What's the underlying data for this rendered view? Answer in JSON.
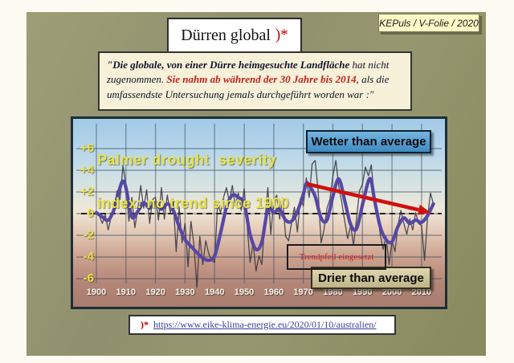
{
  "slide": {
    "badge": "KEPuls / V-Folie / 2020",
    "title": "Dürren global",
    "title_marker": ")*"
  },
  "quote": {
    "segments": [
      {
        "text": "\"Die globale, von einer Dürre heimgesuchte Landfläche",
        "style": "bold"
      },
      {
        "text": " hat nicht zugenommen. ",
        "style": "normal"
      },
      {
        "text": "Sie nahm ab während der 30 Jahre bis 2014",
        "style": "red-bold"
      },
      {
        "text": ", als die umfassendste Untersuchung jemals durchgeführt worden war :\"",
        "style": "normal"
      }
    ]
  },
  "chart_data": {
    "type": "line",
    "title_lines": [
      "Palmer drought  severity",
      "index: no trend since 1900"
    ],
    "xlabel": "",
    "ylabel": "Palmer drought severity index",
    "xlim": [
      1898,
      2016
    ],
    "ylim": [
      -7.3,
      8.4
    ],
    "grid": true,
    "x_ticks": [
      1900,
      1910,
      1920,
      1930,
      1940,
      1950,
      1960,
      1970,
      1980,
      1990,
      2000,
      2010
    ],
    "y_ticks": [
      {
        "label": "+6",
        "value": 6
      },
      {
        "label": "+4",
        "value": 4
      },
      {
        "label": "+2",
        "value": 2
      },
      {
        "label": "0",
        "value": 0
      },
      {
        "label": "-2",
        "value": -2
      },
      {
        "label": "-4",
        "value": -4
      },
      {
        "label": "-6",
        "value": -6
      }
    ],
    "series": [
      {
        "name": "annual-index",
        "x_start": 1900,
        "x_step": 1,
        "values": [
          0.2,
          -0.2,
          -0.9,
          -0.1,
          -1.5,
          -0.3,
          0.6,
          2.1,
          1.3,
          4.4,
          2.7,
          -0.7,
          1.5,
          -1.3,
          0.4,
          2.6,
          0.5,
          2.2,
          -0.9,
          1.3,
          1.5,
          -0.6,
          2.4,
          -0.5,
          1.7,
          0.1,
          1.2,
          -3.5,
          0.6,
          -2.7,
          -0.9,
          -4.9,
          -0.7,
          -2.9,
          -6.8,
          -2.1,
          -4.7,
          -2.5,
          -3.7,
          -4.3,
          -4.5,
          0.9,
          0.1,
          1.5,
          2.4,
          1.1,
          2.6,
          0.7,
          1.9,
          0.3,
          2.3,
          -1.1,
          -4.5,
          -2.7,
          -5.3,
          -3.9,
          -4.7,
          -0.7,
          2.4,
          -1.9,
          1.2,
          1.7,
          -0.5,
          1.4,
          -2.1,
          -2.5,
          -0.9,
          0.6,
          -1.7,
          1.4,
          0.7,
          3.3,
          1.5,
          4.6,
          4.9,
          2.1,
          -2.7,
          -1.5,
          0.5,
          1.3,
          3.5,
          4.9,
          2.5,
          1.1,
          -0.7,
          -2.3,
          -1.1,
          -2.9,
          -0.5,
          2.1,
          2.7,
          4.3,
          3.5,
          4.5,
          1.5,
          0.3,
          -1.9,
          -3.3,
          -2.1,
          -4.7,
          -2.5,
          -3.5,
          -1.1,
          0.3,
          -0.9,
          -1.9,
          -0.5,
          -1.5,
          0.1,
          -0.9,
          -1.1,
          -4.3,
          -0.4,
          1.9,
          0.9
        ]
      },
      {
        "name": "smoothed-index",
        "x": [
          1900,
          1902,
          1904,
          1906,
          1908,
          1909,
          1910,
          1912,
          1914,
          1916,
          1918,
          1920,
          1922,
          1924,
          1926,
          1928,
          1930,
          1932,
          1934,
          1936,
          1938,
          1940,
          1942,
          1944,
          1946,
          1948,
          1950,
          1952,
          1954,
          1956,
          1958,
          1960,
          1962,
          1964,
          1966,
          1968,
          1970,
          1971,
          1972,
          1974,
          1976,
          1978,
          1980,
          1982,
          1984,
          1986,
          1988,
          1990,
          1992,
          1993,
          1994,
          1996,
          1998,
          2000,
          2002,
          2004,
          2006,
          2008,
          2010,
          2012,
          2014
        ],
        "values": [
          0.1,
          -0.3,
          -0.6,
          0.4,
          2.4,
          3.0,
          2.4,
          -0.3,
          0.2,
          1.0,
          0.5,
          1.0,
          0.4,
          0.9,
          0.3,
          -1.2,
          -2.4,
          -3.0,
          -3.6,
          -4.1,
          -4.3,
          -3.9,
          -1.8,
          0.6,
          1.7,
          1.5,
          0.9,
          -1.9,
          -3.3,
          -2.6,
          0.4,
          0.1,
          0.4,
          -0.6,
          -0.7,
          0.2,
          1.8,
          2.8,
          2.6,
          1.6,
          -0.4,
          -0.6,
          1.6,
          3.2,
          1.2,
          -1.0,
          -1.4,
          0.8,
          3.0,
          3.0,
          1.4,
          -1.2,
          -2.4,
          -2.6,
          -1.2,
          -0.4,
          -0.9,
          -0.6,
          -0.8,
          -0.2,
          0.9
        ]
      }
    ],
    "trend_arrow": {
      "from": {
        "year": 1971,
        "value": 2.75
      },
      "to": {
        "year": 2013,
        "value": 0.1
      },
      "color": "#d01010"
    },
    "labels": {
      "wetter": "Wetter than average",
      "drier": "Drier than average",
      "annotation": "Trendpfeil eingesetzt"
    },
    "colors": {
      "annual_line": "#33333f",
      "smoothed_line": "#5747a5",
      "grid": "rgba(55,75,95,0.5)",
      "zero_line": "#101010",
      "tick_yellow": "#ecdf4a",
      "tick_white": "#f6f4ee"
    }
  },
  "footer": {
    "marker": ")*",
    "link_text": "https://www.eike-klima-energie.eu/2020/01/10/australien/"
  }
}
